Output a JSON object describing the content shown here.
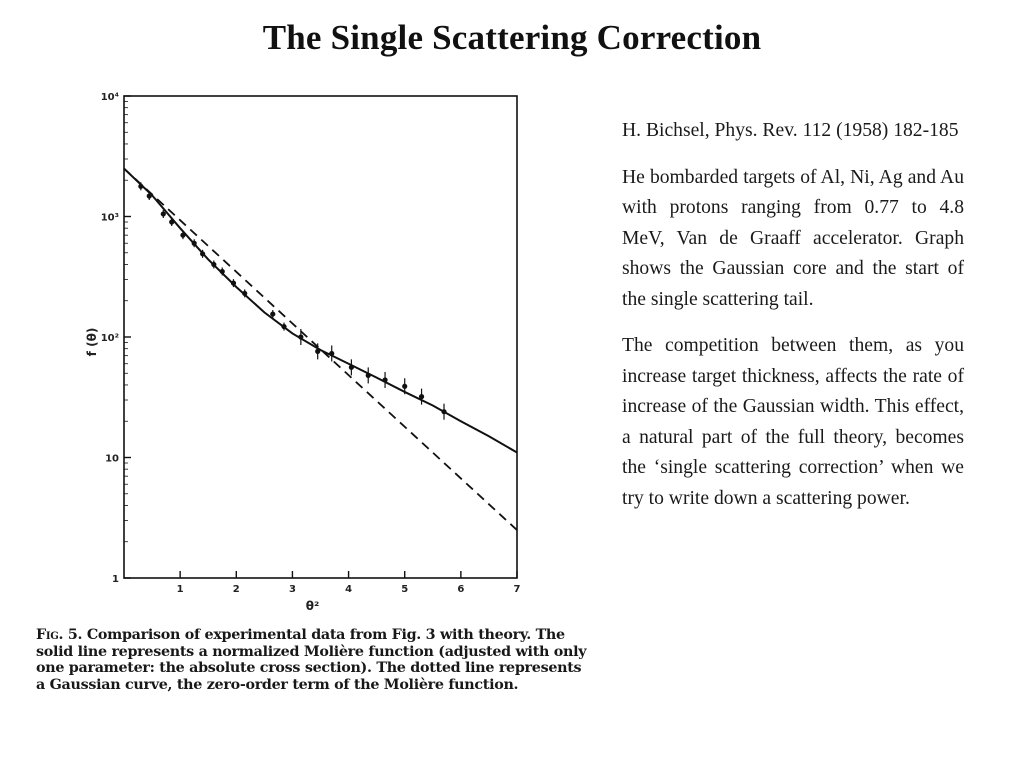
{
  "slide": {
    "title": "The Single Scattering Correction"
  },
  "figure": {
    "y_tick_labels": [
      "10⁴",
      "10³",
      "10²",
      "10",
      "1"
    ],
    "x_tick_labels": [
      "1",
      "2",
      "3",
      "4",
      "5",
      "6",
      "7"
    ],
    "ylabel": "f (θ)",
    "xlabel": "θ²",
    "caption_prefix": "Fig. 5.",
    "caption_text": " Comparison of experimental data from Fig. 3 with theory. The solid line represents a normalized Molière function (adjusted with only one parameter: the absolute cross section). The dotted line represents a Gaussian curve, the zero-order term of the Molière function."
  },
  "chart_data": {
    "type": "scatter",
    "xlabel": "θ²",
    "ylabel": "f (θ)",
    "xlim": [
      0,
      7
    ],
    "ylim": [
      1,
      10000
    ],
    "yscale": "log",
    "grid": false,
    "series": [
      {
        "style": "points-with-error-bars",
        "x": [
          0.3,
          0.45,
          0.7,
          0.85,
          1.05,
          1.25,
          1.4,
          1.6,
          1.75,
          1.95,
          2.15,
          2.65,
          2.85,
          3.15,
          3.45,
          3.7,
          4.05,
          4.35,
          4.65,
          5.0,
          5.3,
          5.7
        ],
        "y": [
          1780,
          1480,
          1050,
          900,
          700,
          600,
          490,
          400,
          350,
          280,
          230,
          155,
          122,
          100,
          76,
          73,
          56,
          48,
          44,
          39,
          32,
          24
        ]
      },
      {
        "style": "solid",
        "x": [
          0,
          0.5,
          1,
          1.5,
          2,
          2.5,
          3,
          3.5,
          4,
          4.5,
          5,
          5.5,
          6,
          6.5,
          7
        ],
        "y": [
          2500,
          1500,
          800,
          440,
          260,
          160,
          107,
          78,
          60,
          46,
          35,
          27,
          20,
          15,
          11
        ]
      },
      {
        "style": "dashed",
        "x": [
          0,
          7
        ],
        "y": [
          2500,
          2.5
        ]
      }
    ]
  },
  "text": {
    "citation": "H. Bichsel, Phys. Rev. 112 (1958) 182-185",
    "para1": "He bombarded targets of Al, Ni, Ag and Au with protons ranging from 0.77 to 4.8 MeV, Van de Graaff accelerator. Graph shows the Gaussian core and the start of the single scattering tail.",
    "para2": "The competition between them, as you increase target thickness, affects the rate of increase of the Gaussian width. This effect, a natural part of the full theory, becomes the ‘single scattering correction’ when we try to write down a scattering power."
  }
}
